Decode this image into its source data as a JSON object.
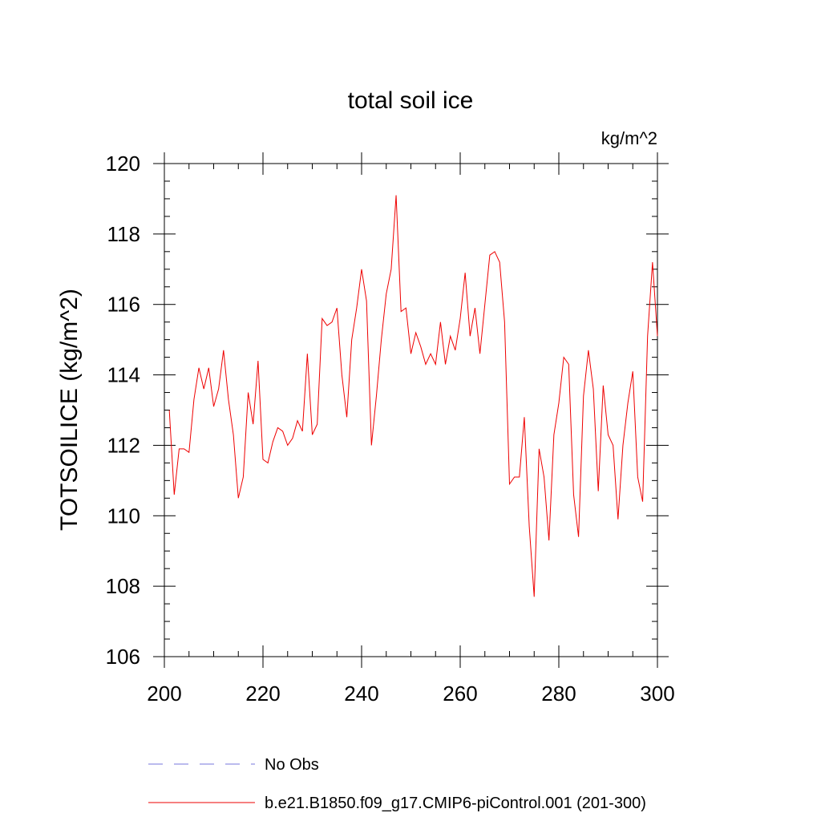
{
  "chart_data": {
    "type": "line",
    "title": "total soil ice",
    "units": "kg/m^2",
    "ylabel": "TOTSOILICE  (kg/m^2)",
    "xlabel": "",
    "xlim": [
      200,
      300
    ],
    "ylim": [
      106,
      120
    ],
    "xticks": [
      200,
      220,
      240,
      260,
      280,
      300
    ],
    "yticks": [
      106,
      108,
      110,
      112,
      114,
      116,
      118,
      120
    ],
    "xtick_labels": [
      "200",
      "220",
      "240",
      "260",
      "280",
      "300"
    ],
    "ytick_labels": [
      "106",
      "108",
      "110",
      "112",
      "114",
      "116",
      "118",
      "120"
    ],
    "series": [
      {
        "name": "No Obs",
        "color": "#7777dd",
        "style": "dashed",
        "x": [],
        "y": []
      },
      {
        "name": "b.e21.B1850.f09_g17.CMIP6-piControl.001 (201-300)",
        "color": "#ee0000",
        "style": "solid",
        "x": [
          201,
          202,
          203,
          204,
          205,
          206,
          207,
          208,
          209,
          210,
          211,
          212,
          213,
          214,
          215,
          216,
          217,
          218,
          219,
          220,
          221,
          222,
          223,
          224,
          225,
          226,
          227,
          228,
          229,
          230,
          231,
          232,
          233,
          234,
          235,
          236,
          237,
          238,
          239,
          240,
          241,
          242,
          243,
          244,
          245,
          246,
          247,
          248,
          249,
          250,
          251,
          252,
          253,
          254,
          255,
          256,
          257,
          258,
          259,
          260,
          261,
          262,
          263,
          264,
          265,
          266,
          267,
          268,
          269,
          270,
          271,
          272,
          273,
          274,
          275,
          276,
          277,
          278,
          279,
          280,
          281,
          282,
          283,
          284,
          285,
          286,
          287,
          288,
          289,
          290,
          291,
          292,
          293,
          294,
          295,
          296,
          297,
          298,
          299,
          300
        ],
        "y": [
          113.0,
          110.6,
          111.9,
          111.9,
          111.8,
          113.3,
          114.2,
          113.6,
          114.2,
          113.1,
          113.6,
          114.7,
          113.3,
          112.3,
          110.5,
          111.1,
          113.5,
          112.6,
          114.4,
          111.6,
          111.5,
          112.1,
          112.5,
          112.4,
          112.0,
          112.2,
          112.7,
          112.4,
          114.6,
          112.3,
          112.6,
          115.6,
          115.4,
          115.5,
          115.9,
          114.0,
          112.8,
          115.0,
          115.9,
          117.0,
          116.1,
          112.0,
          113.4,
          115.0,
          116.3,
          117.0,
          119.1,
          115.8,
          115.9,
          114.6,
          115.2,
          114.8,
          114.3,
          114.6,
          114.3,
          115.5,
          114.3,
          115.1,
          114.7,
          115.6,
          116.9,
          115.1,
          115.9,
          114.6,
          116.0,
          117.4,
          117.5,
          117.2,
          115.5,
          110.9,
          111.1,
          111.1,
          112.8,
          109.7,
          107.7,
          111.9,
          111.1,
          109.3,
          112.3,
          113.2,
          114.5,
          114.3,
          110.6,
          109.4,
          113.4,
          114.7,
          113.6,
          110.7,
          113.7,
          112.3,
          112.0,
          109.9,
          112.0,
          113.2,
          114.1,
          111.1,
          110.4,
          115.1,
          117.2,
          115.1
        ]
      }
    ]
  }
}
